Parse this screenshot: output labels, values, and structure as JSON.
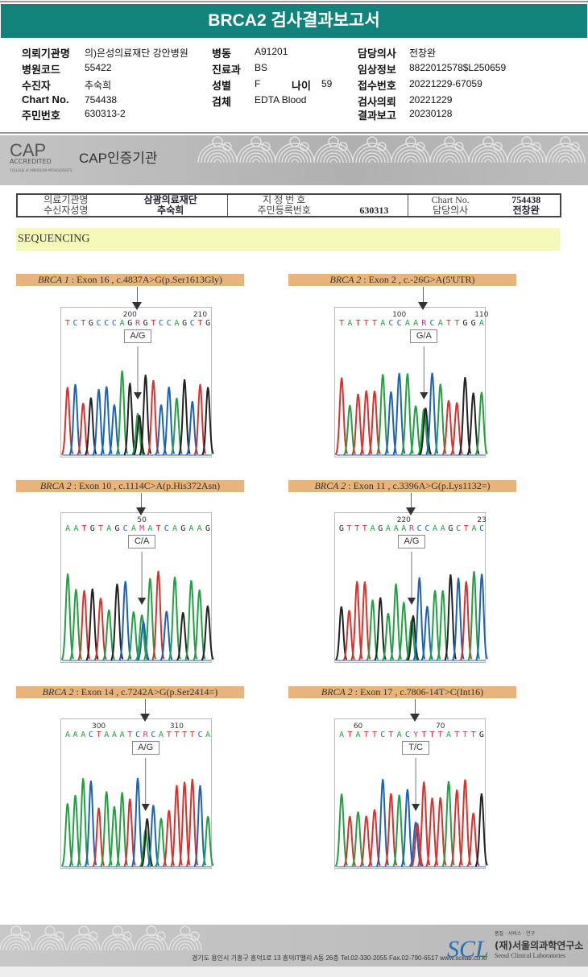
{
  "title": "BRCA2 검사결과보고서",
  "info": {
    "col1": [
      {
        "label": "의뢰기관명",
        "value": "의)은성의료재단 강안병원"
      },
      {
        "label": "병원코드",
        "value": "55422"
      },
      {
        "label": "수진자",
        "value": "추숙희"
      },
      {
        "label": "Chart No.",
        "value": "754438"
      },
      {
        "label": "주민번호",
        "value": "630313-2"
      }
    ],
    "col2": [
      {
        "label": "병동",
        "value": "A91201"
      },
      {
        "label": "진료과",
        "value": "BS"
      },
      {
        "label": "성별",
        "value": "F"
      },
      {
        "label": "검체",
        "value": "EDTA Blood"
      }
    ],
    "age": {
      "label": "나이",
      "value": "59"
    },
    "col3": [
      {
        "label": "담당의사",
        "value": "전창완"
      },
      {
        "label": "임상정보",
        "value": "8822012578$L250659"
      },
      {
        "label": "접수번호",
        "value": "20221229-67059"
      },
      {
        "label": "검사의뢰",
        "value": "20221229"
      },
      {
        "label": "결과보고",
        "value": "20230128"
      }
    ]
  },
  "cap": {
    "logo": "CAP",
    "accredited": "ACCREDITED",
    "college": "COLLEGE of AMERICAN PATHOLOGISTS",
    "cert": "CAP인증기관"
  },
  "report_table": {
    "row1": [
      "의료기관명",
      "삼광의료재단",
      "지 정 번 호",
      "",
      "Chart No.",
      "754438"
    ],
    "row2": [
      "수신자성명",
      "추숙희",
      "주민등록번호",
      "630313",
      "담당의사",
      "전창완"
    ]
  },
  "section": "SEQUENCING",
  "chart_data": [
    {
      "type": "sequencing",
      "gene": "BRCA 1",
      "desc": " : Exon 16 , c.4837A>G(p.Ser1613Gly)",
      "sequence": "TCTGCCCAGRGTCCAGCTG",
      "ticks": [
        {
          "label": "200",
          "index": 8
        },
        {
          "label": "210",
          "index": 17
        }
      ],
      "call": "A/G",
      "variant_index": 9
    },
    {
      "type": "sequencing",
      "gene": "BRCA 2",
      "desc": " : Exon 2 , c.-26G>A(5'UTR)",
      "sequence": "TATTTACCAARCATTGGA",
      "ticks": [
        {
          "label": "100",
          "index": 7
        },
        {
          "label": "110",
          "index": 17
        }
      ],
      "call": "G/A",
      "variant_index": 10
    },
    {
      "type": "sequencing",
      "gene": "BRCA 2",
      "desc": " : Exon 10 , c.1114C>A(p.His372Asn)",
      "sequence": "AATGTAGCAMATCAGAAG",
      "ticks": [
        {
          "label": "50",
          "index": 9
        }
      ],
      "call": "C/A",
      "variant_index": 9
    },
    {
      "type": "sequencing",
      "gene": "BRCA 2",
      "desc": " : Exon 11 , c.3396A>G(p.Lys1132=)",
      "sequence": "GTTTAGAAARCCAAGCTAC",
      "ticks": [
        {
          "label": "220",
          "index": 8
        },
        {
          "label": "23",
          "index": 18
        }
      ],
      "call": "A/G",
      "variant_index": 9
    },
    {
      "type": "sequencing",
      "gene": "BRCA 2",
      "desc": " : Exon 14 , c.7242A>G(p.Ser2414=)",
      "sequence": "AAACTAAATCRCATTTTCA",
      "ticks": [
        {
          "label": "300",
          "index": 4
        },
        {
          "label": "310",
          "index": 14
        }
      ],
      "call": "A/G",
      "variant_index": 10
    },
    {
      "type": "sequencing",
      "gene": "BRCA 2",
      "desc": " : Exon 17 , c.7806-14T>C(Int16)",
      "sequence": "ATATTCTACYTTTATTTG",
      "ticks": [
        {
          "label": "60",
          "index": 2
        },
        {
          "label": "70",
          "index": 12
        }
      ],
      "call": "T/C",
      "variant_index": 9
    }
  ],
  "base_colors": {
    "A": "#22a043",
    "C": "#1d63b5",
    "G": "#222222",
    "T": "#d8322e"
  },
  "footer": {
    "address": "경기도 용인시 기흥구 흥덕1로 13 흥덕IT밸리 A동 26층  Tel.02-330-2055  Fax.02-790-6517  www.scllab.co.kr",
    "logo": "SCL",
    "tagline": "품질 · 서비스 · 연구",
    "org": "(재)서울의과학연구소",
    "org_en": "Seoul Clinical Laboratories"
  }
}
